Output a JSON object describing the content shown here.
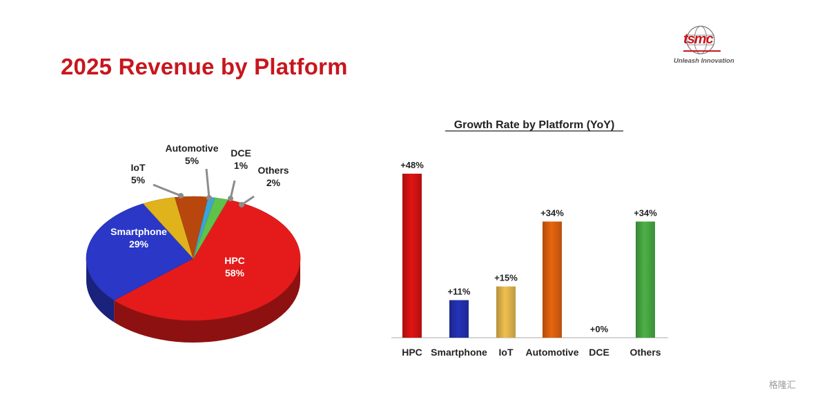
{
  "slide": {
    "title": "2025 Revenue by Platform",
    "logo_text": "tsmc",
    "logo_tagline": "Unleash Innovation",
    "watermark": "格隆汇"
  },
  "chart_data": [
    {
      "type": "pie",
      "title": "",
      "slices": [
        {
          "label": "HPC",
          "value": 58,
          "value_label": "58%",
          "color": "#e51b1b"
        },
        {
          "label": "Smartphone",
          "value": 29,
          "value_label": "29%",
          "color": "#2a37c7"
        },
        {
          "label": "IoT",
          "value": 5,
          "value_label": "5%",
          "color": "#e0b21c"
        },
        {
          "label": "Automotive",
          "value": 5,
          "value_label": "5%",
          "color": "#b8470d"
        },
        {
          "label": "DCE",
          "value": 1,
          "value_label": "1%",
          "color": "#39a5dc"
        },
        {
          "label": "Others",
          "value": 2,
          "value_label": "2%",
          "color": "#5fc24a"
        }
      ],
      "style": "3d-tilted"
    },
    {
      "type": "bar",
      "title": "Growth Rate by Platform (YoY)",
      "categories": [
        "HPC",
        "Smartphone",
        "IoT",
        "Automotive",
        "DCE",
        "Others"
      ],
      "values": [
        48,
        11,
        15,
        34,
        0,
        34
      ],
      "value_labels": [
        "+48%",
        "+11%",
        "+15%",
        "+34%",
        "+0%",
        "+34%"
      ],
      "colors": [
        "#e11414",
        "#2533b8",
        "#f0c050",
        "#e8650f",
        "#888888",
        "#4cb146"
      ],
      "xlabel": "",
      "ylabel": "",
      "ylim": [
        0,
        50
      ],
      "grid": false
    }
  ]
}
